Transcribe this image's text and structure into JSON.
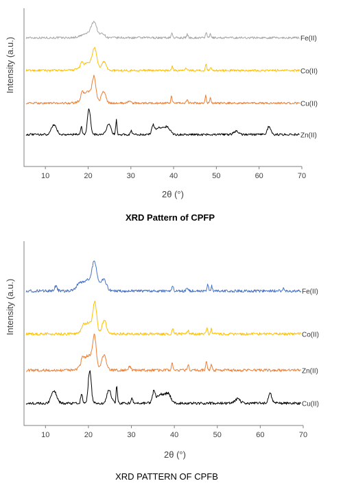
{
  "chart_data": [
    {
      "type": "line",
      "title": "XRD Pattern of CPFP",
      "xlabel": "2θ (°)",
      "ylabel": "Intensity (a.u.)",
      "xlim": [
        5,
        70
      ],
      "xticks": [
        "10",
        "20",
        "30",
        "40",
        "50",
        "60",
        "70"
      ],
      "grid": false,
      "series": [
        {
          "name": "Fe(II)",
          "color": "#a5a5a5",
          "baseline": 8.9,
          "peaks": [
            [
              21.4,
              1.0,
              0.6
            ],
            [
              20.2,
              0.35,
              1.5
            ],
            [
              23.4,
              0.3,
              0.5
            ],
            [
              39.6,
              0.35,
              0.18
            ],
            [
              43.2,
              0.25,
              0.18
            ],
            [
              47.6,
              0.45,
              0.15
            ],
            [
              48.6,
              0.3,
              0.15
            ]
          ]
        },
        {
          "name": "Co(II)",
          "color": "#ffc000",
          "baseline": 6.4,
          "peaks": [
            [
              21.5,
              1.4,
              0.5
            ],
            [
              20.0,
              0.55,
              1.5
            ],
            [
              23.7,
              0.65,
              0.5
            ],
            [
              18.5,
              0.3,
              0.3
            ],
            [
              39.7,
              0.3,
              0.18
            ],
            [
              43.0,
              0.2,
              0.18
            ],
            [
              47.6,
              0.45,
              0.15
            ],
            [
              48.7,
              0.3,
              0.15
            ]
          ]
        },
        {
          "name": "Cu(II)",
          "color": "#ed7d31",
          "baseline": 3.9,
          "peaks": [
            [
              21.4,
              1.6,
              0.4
            ],
            [
              20.0,
              0.9,
              1.2
            ],
            [
              23.6,
              0.9,
              0.5
            ],
            [
              18.6,
              0.4,
              0.3
            ],
            [
              29.6,
              0.2,
              0.3
            ],
            [
              39.5,
              0.5,
              0.15
            ],
            [
              43.2,
              0.3,
              0.18
            ],
            [
              47.5,
              0.6,
              0.15
            ],
            [
              48.6,
              0.4,
              0.15
            ]
          ]
        },
        {
          "name": "Zn(II)",
          "color": "#000000",
          "baseline": 1.5,
          "peaks": [
            [
              12.0,
              0.75,
              0.6
            ],
            [
              18.4,
              0.6,
              0.2
            ],
            [
              20.2,
              2.0,
              0.35
            ],
            [
              24.8,
              0.8,
              0.5
            ],
            [
              26.6,
              1.1,
              0.15
            ],
            [
              30.1,
              0.3,
              0.2
            ],
            [
              35.2,
              0.6,
              0.3
            ],
            [
              36.8,
              0.55,
              1.0
            ],
            [
              38.6,
              0.5,
              0.6
            ],
            [
              54.7,
              0.25,
              0.6
            ],
            [
              62.3,
              0.6,
              0.4
            ]
          ]
        }
      ]
    },
    {
      "type": "line",
      "title": "XRD PATTERN OF CPFB",
      "xlabel": "2θ (°)",
      "ylabel": "Intensity (a.u.)",
      "xlim": [
        5,
        70
      ],
      "xticks": [
        "10",
        "20",
        "30",
        "40",
        "50",
        "60",
        "70"
      ],
      "grid": false,
      "series": [
        {
          "name": "Fe(II)",
          "color": "#4472c4",
          "baseline": 7.4,
          "peaks": [
            [
              21.4,
              1.3,
              0.5
            ],
            [
              20.2,
              0.7,
              1.7
            ],
            [
              23.6,
              0.6,
              0.6
            ],
            [
              12.4,
              0.3,
              0.3
            ],
            [
              17.8,
              0.25,
              0.5
            ],
            [
              39.6,
              0.3,
              0.18
            ],
            [
              43.0,
              0.2,
              0.2
            ],
            [
              47.8,
              0.4,
              0.15
            ],
            [
              48.7,
              0.3,
              0.15
            ],
            [
              65.4,
              0.15,
              0.2
            ]
          ]
        },
        {
          "name": "Co(II)",
          "color": "#ffc000",
          "baseline": 4.8,
          "peaks": [
            [
              21.5,
              1.6,
              0.4
            ],
            [
              20.2,
              0.7,
              1.2
            ],
            [
              23.7,
              0.8,
              0.5
            ],
            [
              18.8,
              0.3,
              0.3
            ],
            [
              39.6,
              0.3,
              0.18
            ],
            [
              43.2,
              0.2,
              0.18
            ],
            [
              47.6,
              0.4,
              0.15
            ],
            [
              48.6,
              0.3,
              0.15
            ]
          ]
        },
        {
          "name": "Zn(II)",
          "color": "#ed7d31",
          "baseline": 2.6,
          "peaks": [
            [
              21.4,
              1.7,
              0.4
            ],
            [
              20.0,
              0.9,
              1.2
            ],
            [
              23.6,
              0.9,
              0.5
            ],
            [
              18.6,
              0.4,
              0.3
            ],
            [
              29.6,
              0.2,
              0.3
            ],
            [
              39.5,
              0.5,
              0.15
            ],
            [
              43.2,
              0.3,
              0.18
            ],
            [
              47.5,
              0.6,
              0.15
            ],
            [
              48.6,
              0.4,
              0.15
            ]
          ]
        },
        {
          "name": "Cu(II)",
          "color": "#000000",
          "baseline": 0.6,
          "peaks": [
            [
              12.0,
              0.75,
              0.6
            ],
            [
              18.4,
              0.6,
              0.2
            ],
            [
              20.3,
              2.0,
              0.35
            ],
            [
              24.8,
              0.8,
              0.5
            ],
            [
              26.6,
              1.1,
              0.15
            ],
            [
              30.1,
              0.3,
              0.2
            ],
            [
              35.2,
              0.6,
              0.3
            ],
            [
              36.8,
              0.55,
              1.0
            ],
            [
              38.6,
              0.5,
              0.6
            ],
            [
              54.7,
              0.25,
              0.6
            ],
            [
              62.3,
              0.6,
              0.4
            ]
          ]
        }
      ]
    }
  ]
}
